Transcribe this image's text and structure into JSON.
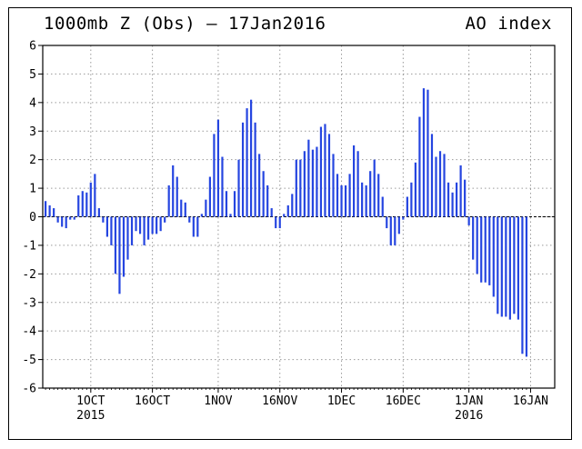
{
  "title_left": "1000mb Z (Obs) – 17Jan2016",
  "title_right": "AO index",
  "colors": {
    "bar": "#2545e0",
    "axis": "#000000",
    "grid": "#9a9a9a"
  },
  "chart_data": {
    "type": "bar",
    "title": "1000mb Z (Obs) – 17Jan2016",
    "subtitle": "AO index",
    "xlabel": "",
    "ylabel": "",
    "ylim": [
      -6,
      6
    ],
    "yticks": [
      -6,
      -5,
      -4,
      -3,
      -2,
      -1,
      0,
      1,
      2,
      3,
      4,
      5,
      6
    ],
    "x_dates_start": "2015-09-20",
    "x_dates_end": "2016-01-16",
    "xticks": [
      {
        "date": "2015-10-01",
        "label": "1OCT",
        "label2": "2015"
      },
      {
        "date": "2015-10-16",
        "label": "16OCT",
        "label2": ""
      },
      {
        "date": "2015-11-01",
        "label": "1NOV",
        "label2": ""
      },
      {
        "date": "2015-11-16",
        "label": "16NOV",
        "label2": ""
      },
      {
        "date": "2015-12-01",
        "label": "1DEC",
        "label2": ""
      },
      {
        "date": "2015-12-16",
        "label": "16DEC",
        "label2": ""
      },
      {
        "date": "2016-01-01",
        "label": "1JAN",
        "label2": "2016"
      },
      {
        "date": "2016-01-16",
        "label": "16JAN",
        "label2": ""
      }
    ],
    "grid": true,
    "legend": "none",
    "values": [
      0.55,
      0.4,
      0.3,
      -0.2,
      -0.35,
      -0.4,
      -0.1,
      -0.1,
      0.75,
      0.9,
      0.85,
      1.2,
      1.5,
      0.3,
      -0.2,
      -0.7,
      -1.0,
      -2.0,
      -2.7,
      -2.1,
      -1.5,
      -1.0,
      -0.5,
      -0.6,
      -1.0,
      -0.8,
      -0.6,
      -0.6,
      -0.5,
      -0.2,
      1.1,
      1.8,
      1.4,
      0.6,
      0.5,
      -0.2,
      -0.7,
      -0.7,
      0.1,
      0.6,
      1.4,
      2.9,
      3.4,
      2.1,
      0.9,
      0.1,
      0.9,
      2.0,
      3.3,
      3.8,
      4.1,
      3.3,
      2.2,
      1.6,
      1.1,
      0.3,
      -0.4,
      -0.4,
      0.1,
      0.4,
      0.8,
      2.0,
      2.0,
      2.3,
      2.7,
      2.35,
      2.45,
      3.15,
      3.25,
      2.9,
      2.2,
      1.5,
      1.1,
      1.1,
      1.5,
      2.5,
      2.3,
      1.2,
      1.1,
      1.6,
      2.0,
      1.5,
      0.7,
      -0.4,
      -1.0,
      -1.0,
      -0.6,
      -0.1,
      0.7,
      1.2,
      1.9,
      3.5,
      4.5,
      4.45,
      2.9,
      2.1,
      2.3,
      2.2,
      1.2,
      0.85,
      1.2,
      1.8,
      1.3,
      -0.3,
      -1.5,
      -2.0,
      -2.3,
      -2.3,
      -2.4,
      -2.8,
      -3.4,
      -3.5,
      -3.5,
      -3.6,
      -3.4,
      -3.6,
      -4.8,
      -4.9
    ]
  }
}
